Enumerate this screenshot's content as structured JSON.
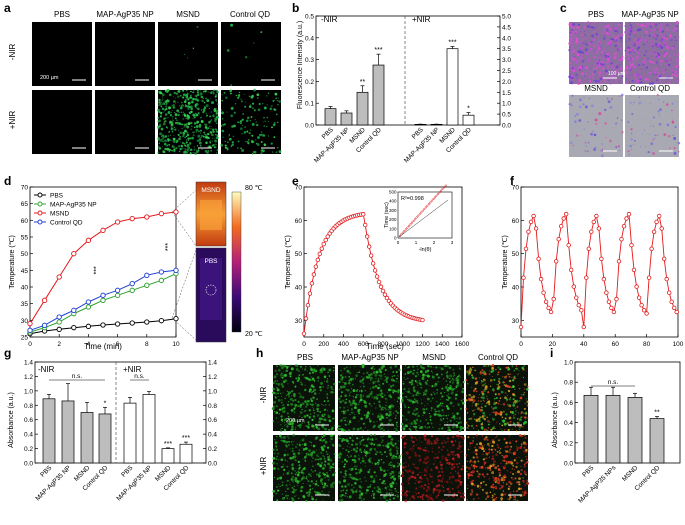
{
  "colors": {
    "pbs": "#000000",
    "map": "#2ca02c",
    "msnd": "#e31a1c",
    "qd": "#1f3fd6",
    "bar_gray": "#bdbdbd",
    "bar_white": "#ffffff"
  },
  "panel_labels": {
    "a": "a",
    "b": "b",
    "c": "c",
    "d": "d",
    "e": "e",
    "f": "f",
    "g": "g",
    "h": "h",
    "i": "i"
  },
  "panel_a": {
    "columns": [
      "PBS",
      "MAP-AgP35 NP",
      "MSND",
      "Control QD"
    ],
    "rows": [
      "-NIR",
      "+NIR"
    ],
    "scale_label": "200 µm"
  },
  "panel_c": {
    "top_columns": [
      "PBS",
      "MAP-AgP35 NP"
    ],
    "bottom_columns": [
      "MSND",
      "Control QD"
    ],
    "scale_label": "100 µm"
  },
  "panel_h": {
    "columns": [
      "PBS",
      "MAP-AgP35 NP",
      "MSND",
      "Control QD"
    ],
    "rows": [
      "-NIR",
      "+NIR"
    ],
    "scale_label": "200 µm"
  },
  "panel_d_thermal": {
    "top_label": "MSND",
    "bottom_label": "PBS",
    "max_label": "80 ℃",
    "min_label": "20 ℃"
  },
  "chart_data": [
    {
      "id": "b",
      "type": "bar",
      "ylabel": "Fluorescence Intensity (a.u.)",
      "ylim": [
        0,
        0.5
      ],
      "yticks": [
        "0.0",
        "0.1",
        "0.2",
        "0.3",
        "0.4",
        "0.5"
      ],
      "y2lim": [
        0,
        5.0
      ],
      "y2ticks": [
        "0.0",
        "0.5",
        "1.0",
        "1.5",
        "2.0",
        "2.5",
        "3.0",
        "3.5",
        "4.0",
        "4.5",
        "5.0"
      ],
      "groups": [
        {
          "name": "-NIR",
          "axis": "left",
          "categories": [
            "PBS",
            "MAP-AgP35 NP",
            "MSND",
            "Control QD"
          ],
          "values": [
            0.075,
            0.055,
            0.15,
            0.275
          ],
          "errors": [
            0.01,
            0.01,
            0.03,
            0.05
          ],
          "sig": [
            "",
            "",
            "**",
            "***"
          ]
        },
        {
          "name": "+NIR",
          "axis": "right",
          "categories": [
            "PBS",
            "MAP-AgP35 NP",
            "MSND",
            "Control QD"
          ],
          "values": [
            0.03,
            0.03,
            3.5,
            0.45
          ],
          "errors": [
            0.01,
            0.01,
            0.1,
            0.12
          ],
          "sig": [
            "",
            "",
            "***",
            "*"
          ]
        }
      ]
    },
    {
      "id": "d",
      "type": "line",
      "xlabel": "Time (min)",
      "ylabel": "Temperature (℃)",
      "xlim": [
        0,
        10
      ],
      "ylim": [
        25,
        70
      ],
      "xticks": [
        "0",
        "2",
        "4",
        "6",
        "8",
        "10"
      ],
      "yticks": [
        "25",
        "30",
        "35",
        "40",
        "45",
        "50",
        "55",
        "60",
        "65",
        "70"
      ],
      "x": [
        0,
        1,
        2,
        3,
        4,
        5,
        6,
        7,
        8,
        9,
        10
      ],
      "series": [
        {
          "name": "PBS",
          "color": "#000000",
          "values": [
            26,
            26.8,
            27.3,
            27.8,
            28.2,
            28.6,
            28.9,
            29.2,
            29.5,
            29.9,
            30.5
          ]
        },
        {
          "name": "MAP-AgP35 NP",
          "color": "#2ca02c",
          "values": [
            26.5,
            27.8,
            29.5,
            32,
            34,
            36,
            37.5,
            39,
            40.5,
            42,
            44
          ]
        },
        {
          "name": "MSND",
          "color": "#e31a1c",
          "values": [
            29,
            36,
            43,
            50,
            54,
            57,
            59.5,
            60.5,
            61,
            62,
            62.5
          ]
        },
        {
          "name": "Control QD",
          "color": "#1f3fd6",
          "values": [
            27,
            28.5,
            31,
            33,
            35.5,
            37.5,
            39,
            41,
            43.5,
            44.5,
            45
          ]
        }
      ],
      "annotations": [
        "***",
        "***"
      ]
    },
    {
      "id": "e",
      "type": "line",
      "xlabel": "Time (sec)",
      "ylabel": "Temperature (℃)",
      "xlim": [
        0,
        1600
      ],
      "ylim": [
        25,
        70
      ],
      "xticks": [
        "0",
        "200",
        "400",
        "600",
        "800",
        "1000",
        "1200",
        "1400",
        "1600"
      ],
      "yticks": [
        "30",
        "40",
        "50",
        "60",
        "70"
      ],
      "inset": {
        "xlabel": "-ln(θ)",
        "ylabel": "Time (sec)",
        "annotation": "R²=0.998",
        "xticks": [
          "0",
          "1",
          "2",
          "3"
        ],
        "yticks": [
          "0",
          "100",
          "200",
          "300",
          "400",
          "500"
        ]
      }
    },
    {
      "id": "f",
      "type": "line",
      "xlabel": "",
      "ylabel": "Temperature (℃)",
      "xlim": [
        0,
        100
      ],
      "ylim": [
        25,
        70
      ],
      "xticks": [
        "0",
        "20",
        "40",
        "60",
        "80",
        "100"
      ],
      "yticks": [
        "30",
        "40",
        "50",
        "60",
        "70"
      ],
      "cycles": 5,
      "peak": 62,
      "trough": 30
    },
    {
      "id": "g",
      "type": "bar",
      "ylabel": "Absorbance (a.u.)",
      "ylim": [
        0,
        1.4
      ],
      "yticks": [
        "0.0",
        "0.2",
        "0.4",
        "0.6",
        "0.8",
        "1.0",
        "1.2",
        "1.4"
      ],
      "groups": [
        {
          "name": "-NIR",
          "categories": [
            "PBS",
            "MAP-AgP35 NP",
            "MSND",
            "Control QD"
          ],
          "values": [
            0.89,
            0.86,
            0.7,
            0.68
          ],
          "errors": [
            0.06,
            0.24,
            0.14,
            0.09
          ],
          "sig": [
            "",
            "",
            "",
            "*"
          ],
          "bracket": "n.s."
        },
        {
          "name": "+NIR",
          "categories": [
            "PBS",
            "MAP-AgP35 NP",
            "MSND",
            "Control QD"
          ],
          "values": [
            0.83,
            0.95,
            0.2,
            0.26
          ],
          "errors": [
            0.08,
            0.04,
            0.01,
            0.03
          ],
          "sig": [
            "",
            "",
            "***",
            "***"
          ],
          "bracket": "n.s."
        }
      ]
    },
    {
      "id": "i",
      "type": "bar",
      "ylabel": "Absorbance (a.u.)",
      "ylim": [
        0,
        1.0
      ],
      "yticks": [
        "0.0",
        "0.2",
        "0.4",
        "0.6",
        "0.8",
        "1.0"
      ],
      "categories": [
        "PBS",
        "MAP-AgP35 NPs",
        "MSND",
        "Control QD"
      ],
      "values": [
        0.67,
        0.67,
        0.65,
        0.44
      ],
      "errors": [
        0.08,
        0.08,
        0.04,
        0.02
      ],
      "sig": [
        "",
        "",
        "",
        "**"
      ],
      "bracket": "n.s."
    }
  ]
}
